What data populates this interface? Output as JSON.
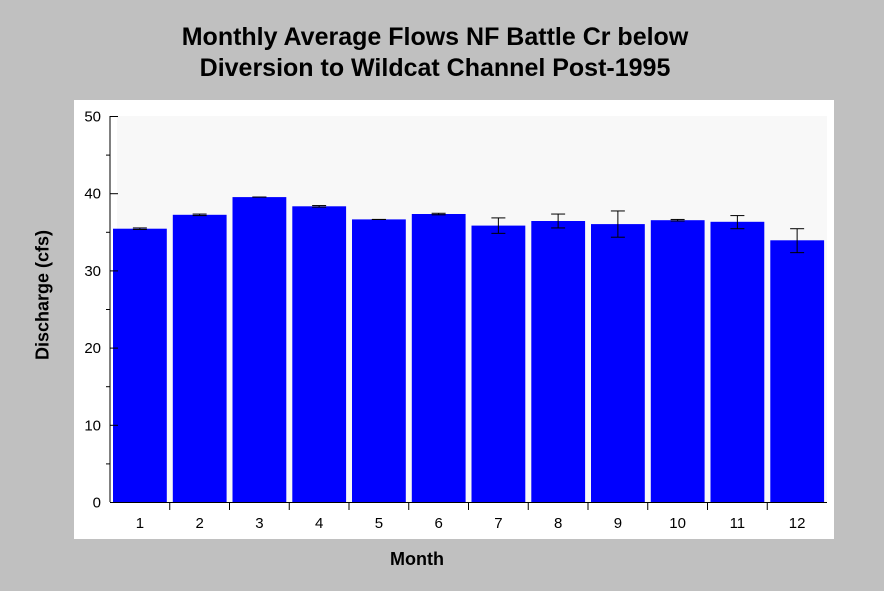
{
  "chart_data": {
    "type": "bar",
    "title": [
      "Monthly Average Flows NF Battle Cr below",
      "Diversion to Wildcat Channel Post-1995"
    ],
    "xlabel": "Month",
    "ylabel": "Discharge (cfs)",
    "categories": [
      "1",
      "2",
      "3",
      "4",
      "5",
      "6",
      "7",
      "8",
      "9",
      "10",
      "11",
      "12"
    ],
    "values": [
      35.4,
      37.2,
      39.5,
      38.3,
      36.6,
      37.3,
      35.8,
      36.4,
      36.0,
      36.5,
      36.3,
      33.9
    ],
    "error_bars": [
      [
        35.3,
        35.5
      ],
      [
        37.1,
        37.3
      ],
      [
        39.5,
        39.5
      ],
      [
        38.2,
        38.4
      ],
      [
        36.6,
        36.6
      ],
      [
        37.2,
        37.4
      ],
      [
        34.8,
        36.8
      ],
      [
        35.5,
        37.3
      ],
      [
        34.3,
        37.7
      ],
      [
        36.4,
        36.6
      ],
      [
        35.4,
        37.1
      ],
      [
        32.3,
        35.4
      ]
    ],
    "ylim": [
      0,
      50
    ],
    "yticks": [
      0,
      10,
      20,
      30,
      40,
      50
    ],
    "grid": false,
    "colors": {
      "bar": "#0000ff",
      "plot_bg": "#f8f8f8",
      "page_bg": "#c0c0c0",
      "panel_bg": "#ffffff"
    }
  }
}
